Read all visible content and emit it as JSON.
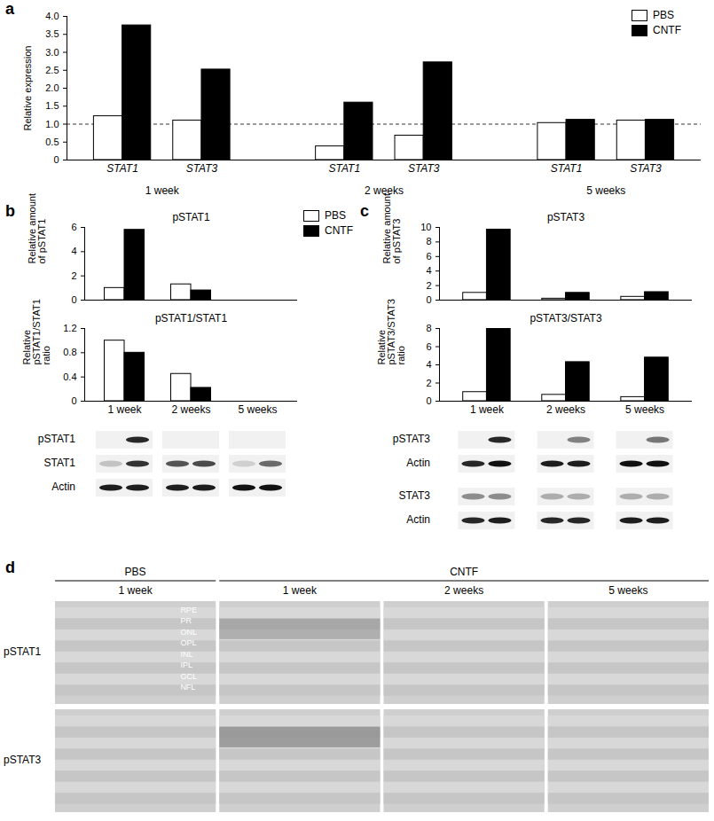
{
  "chart_data": [
    {
      "panel": "a",
      "type": "bar",
      "categories": [
        "STAT1",
        "STAT3",
        "STAT1",
        "STAT3",
        "STAT1",
        "STAT3"
      ],
      "groups": [
        "1 week",
        "1 week",
        "2 weeks",
        "2 weeks",
        "5 weeks",
        "5 weeks"
      ],
      "series": [
        {
          "name": "PBS",
          "color": "#ffffff",
          "values": [
            1.22,
            1.1,
            0.38,
            0.68,
            1.03,
            1.1
          ]
        },
        {
          "name": "CNTF",
          "color": "#000000",
          "values": [
            3.75,
            2.52,
            1.6,
            2.72,
            1.12,
            1.12
          ]
        }
      ],
      "y_label": "Relative expression",
      "ylim": [
        0,
        4
      ],
      "yticks": [
        0,
        0.5,
        {
          "value": 1,
          "label": "1.0"
        },
        1.5,
        {
          "value": 2,
          "label": "2.0"
        },
        2.5,
        {
          "value": 3,
          "label": "3.0"
        },
        3.5,
        {
          "value": 4,
          "label": "4.0"
        }
      ],
      "reference_line": 1,
      "legend": "top-right"
    },
    {
      "panel": "b",
      "type": "bar",
      "title": "pSTAT1",
      "categories": [
        "1 week",
        "2 weeks",
        "5 weeks"
      ],
      "series": [
        {
          "name": "PBS",
          "color": "#ffffff",
          "values": [
            1.0,
            1.3,
            null
          ]
        },
        {
          "name": "CNTF",
          "color": "#000000",
          "values": [
            5.8,
            0.8,
            null
          ]
        }
      ],
      "y_label": "Relative amount of pSTAT1",
      "ylim": [
        0,
        6
      ],
      "yticks": [
        0,
        2,
        4,
        6
      ],
      "tick_labels": "y",
      "legend": "top-right"
    },
    {
      "panel": "b",
      "type": "bar",
      "title": "pSTAT1/STAT1",
      "categories": [
        "1 week",
        "2 weeks",
        "5 weeks"
      ],
      "series": [
        {
          "name": "PBS",
          "color": "#ffffff",
          "values": [
            1.0,
            0.45,
            null
          ]
        },
        {
          "name": "CNTF",
          "color": "#000000",
          "values": [
            0.8,
            0.22,
            null
          ]
        }
      ],
      "y_label": "Relative pSTAT1/STAT1 ratio",
      "ylim": [
        0,
        1.2
      ],
      "yticks": [
        0,
        0.4,
        0.8,
        1.2
      ]
    },
    {
      "panel": "c",
      "type": "bar",
      "title": "pSTAT3",
      "categories": [
        "1 week",
        "2 weeks",
        "5 weeks"
      ],
      "series": [
        {
          "name": "PBS",
          "color": "#ffffff",
          "values": [
            1.0,
            0.2,
            0.45
          ]
        },
        {
          "name": "CNTF",
          "color": "#000000",
          "values": [
            9.7,
            1.0,
            1.1
          ]
        }
      ],
      "y_label": "Relative amount of pSTAT3",
      "ylim": [
        0,
        10
      ],
      "yticks": [
        0,
        2,
        4,
        6,
        8,
        10
      ],
      "tick_labels": "y"
    },
    {
      "panel": "c",
      "type": "bar",
      "title": "pSTAT3/STAT3",
      "categories": [
        "1 week",
        "2 weeks",
        "5 weeks"
      ],
      "series": [
        {
          "name": "PBS",
          "color": "#ffffff",
          "values": [
            1.0,
            0.7,
            0.45
          ]
        },
        {
          "name": "CNTF",
          "color": "#000000",
          "values": [
            8.0,
            4.3,
            4.8
          ]
        }
      ],
      "y_label": "Relative pSTAT3/STAT3 ratio",
      "ylim": [
        0,
        8
      ],
      "yticks": [
        0,
        2,
        4,
        6,
        8
      ]
    }
  ],
  "blots": [
    {
      "panel": "b",
      "blocks": [
        [
          {
            "label": "pSTAT1",
            "bands": [
              [
                0,
                0.9
              ],
              [
                0,
                0
              ],
              [
                0,
                0
              ]
            ]
          },
          {
            "label": "STAT1",
            "bands": [
              [
                0.2,
                0.85
              ],
              [
                0.7,
                0.75
              ],
              [
                0.15,
                0.6
              ]
            ]
          },
          {
            "label": "Actin",
            "bands": [
              [
                0.95,
                0.95
              ],
              [
                0.95,
                0.95
              ],
              [
                1,
                1
              ]
            ]
          }
        ]
      ]
    },
    {
      "panel": "c",
      "blocks": [
        [
          {
            "label": "pSTAT3",
            "bands": [
              [
                0,
                0.9
              ],
              [
                0,
                0.5
              ],
              [
                0,
                0.55
              ]
            ]
          },
          {
            "label": "Actin",
            "bands": [
              [
                0.9,
                1
              ],
              [
                0.95,
                0.95
              ],
              [
                1,
                1
              ]
            ]
          }
        ],
        [
          {
            "label": "STAT3",
            "bands": [
              [
                0.45,
                0.45
              ],
              [
                0.3,
                0.3
              ],
              [
                0.3,
                0.3
              ]
            ]
          },
          {
            "label": "Actin",
            "bands": [
              [
                0.9,
                0.95
              ],
              [
                0.9,
                0.9
              ],
              [
                0.95,
                0.95
              ]
            ]
          }
        ]
      ]
    }
  ],
  "sections": {
    "panel": "d",
    "groups": [
      {
        "label": "PBS",
        "columns": [
          "1 week"
        ]
      },
      {
        "label": "CNTF",
        "columns": [
          "1 week",
          "2 weeks",
          "5 weeks"
        ]
      }
    ],
    "rows": [
      "pSTAT1",
      "pSTAT3"
    ],
    "layers": [
      "RPE",
      "PR",
      "ONL",
      "OPL",
      "INL",
      "IPL",
      "GCL",
      "NFL"
    ]
  }
}
